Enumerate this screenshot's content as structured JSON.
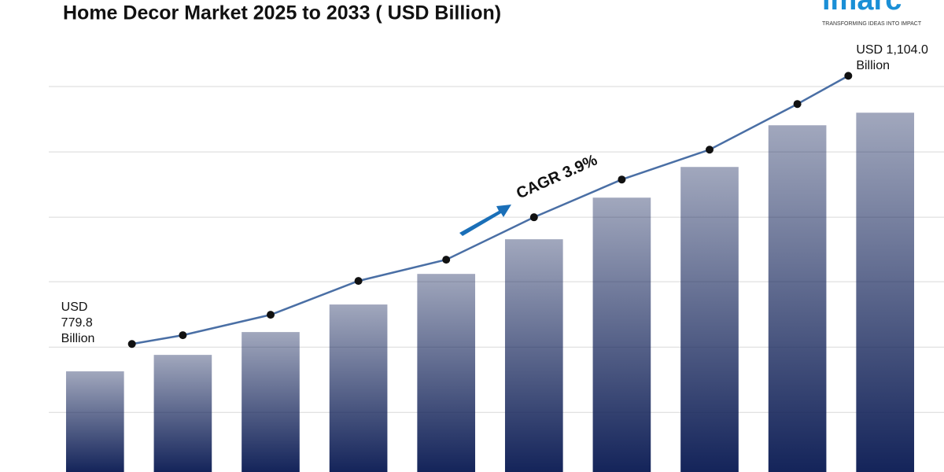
{
  "chart_data": {
    "type": "bar",
    "title": "Home Decor Market 2025 to 2033 ( USD Billion)",
    "logo": {
      "name": "imarc",
      "tagline": "TRANSFORMING IDEAS INTO IMPACT",
      "color": "#1a8fd6"
    },
    "annotation": {
      "text": "CAGR 3.9%",
      "color": "#1a6fb8"
    },
    "categories": [
      null,
      null,
      null,
      null,
      null,
      null,
      null,
      null,
      null,
      null
    ],
    "series": [
      {
        "type": "bar",
        "color": "#14245a",
        "values": [
          746.7,
          766.6,
          794.2,
          827.5,
          864.5,
          906.4,
          956.7,
          993.8,
          1044.2,
          1059.4
        ]
      },
      {
        "type": "line",
        "color": "#4a6fa5",
        "marker_color": "#111111",
        "values": [
          779.8,
          790.4,
          815.1,
          856.0,
          881.7,
          933.0,
          978.6,
          1014.7,
          1069.9,
          1104.0
        ],
        "value_labels": [
          "USD\n779.8\nBillion",
          null,
          null,
          null,
          null,
          null,
          null,
          null,
          null,
          "USD 1,104.0\nBillion"
        ]
      }
    ],
    "ylim": [
      625,
      1150
    ],
    "yticks": [
      697,
      776,
      855,
      933,
      1012,
      1091
    ],
    "grid": true
  }
}
